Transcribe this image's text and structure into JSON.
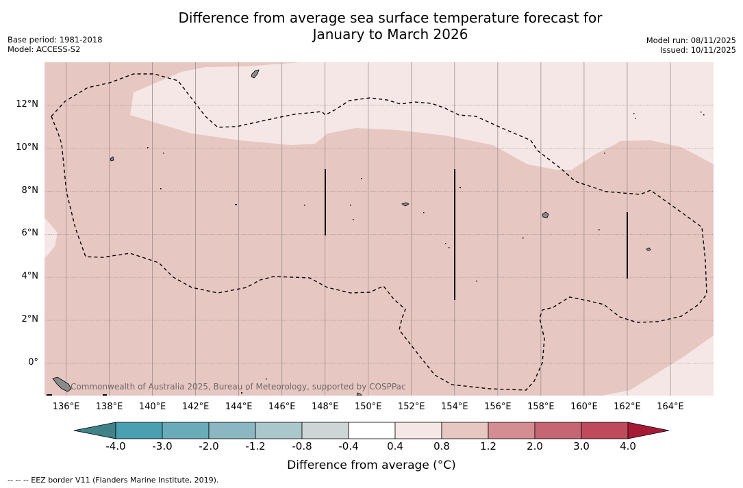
{
  "title_line1": "Difference from average sea surface temperature forecast for",
  "title_line2": "January to March 2026",
  "meta": {
    "base_period": "Base period: 1981-2018",
    "model": "Model: ACCESS-S2",
    "model_run": "Model run: 08/11/2025",
    "issued": "Issued: 10/11/2025"
  },
  "map": {
    "lon_range": [
      135,
      166
    ],
    "lat_range": [
      -1.5,
      14
    ],
    "x_ticks": [
      "136°E",
      "138°E",
      "140°E",
      "142°E",
      "144°E",
      "146°E",
      "148°E",
      "150°E",
      "152°E",
      "154°E",
      "156°E",
      "158°E",
      "160°E",
      "162°E",
      "164°E"
    ],
    "y_ticks": [
      "12°N",
      "10°N",
      "8°N",
      "6°N",
      "4°N",
      "2°N",
      "0°"
    ],
    "colors": {
      "band_0.4_0.8": "#f5e7e5",
      "band_0.8_1.2": "#e7c7c2",
      "land": "#8a8a8a"
    },
    "credit": "Commonwealth of Australia 2025, Bureau of Meteorology, supported by COSPPac"
  },
  "colorbar": {
    "ticks": [
      "-4.0",
      "-3.0",
      "-2.0",
      "-1.2",
      "-0.8",
      "-0.4",
      "0.4",
      "0.8",
      "1.2",
      "2.0",
      "3.0",
      "4.0"
    ],
    "colors": [
      "#4aa0b1",
      "#6aabba",
      "#8ab7c1",
      "#aac8cb",
      "#cdd5d6",
      "#ffffff",
      "#f5e7e5",
      "#e7c7c2",
      "#d48d92",
      "#c66673",
      "#bf4a5b"
    ],
    "under_color": "#3f8288",
    "over_color": "#a71a35",
    "label": "Difference from average (°C)"
  },
  "legend_note": "--  --  -- EEZ border V11 (Flanders Marine Institute, 2019)."
}
